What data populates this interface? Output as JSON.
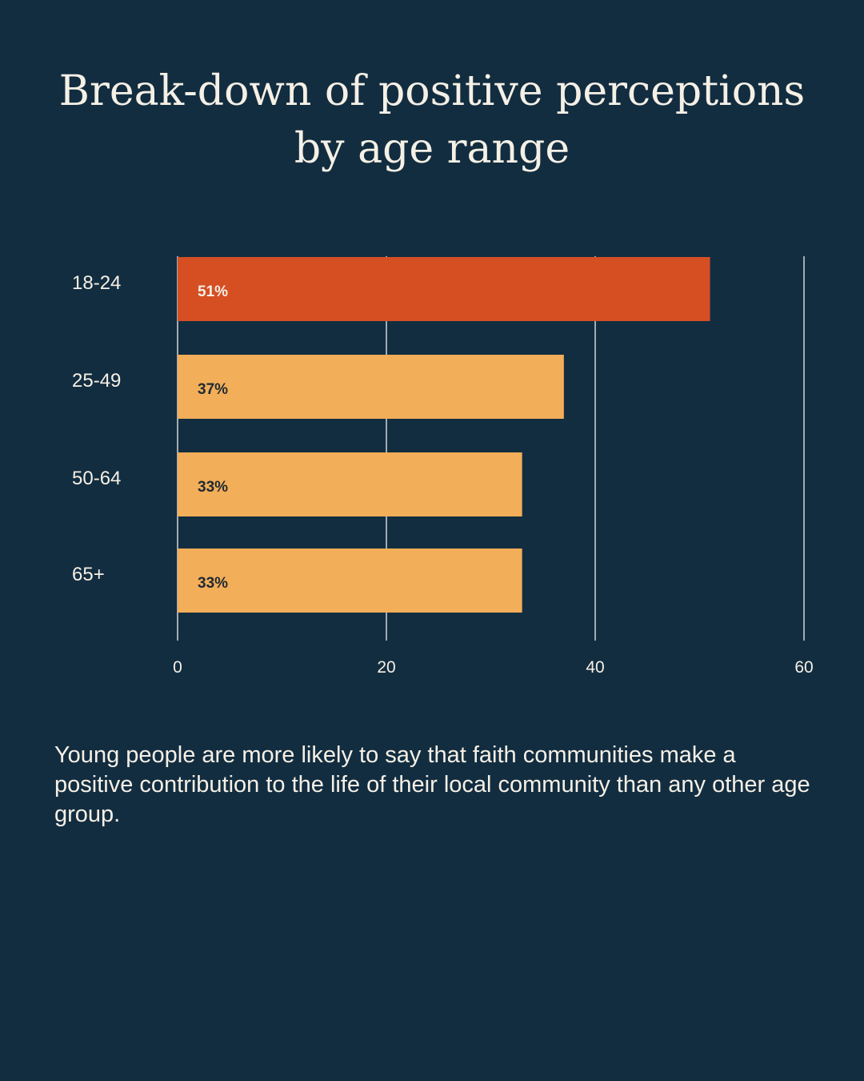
{
  "title": "Break-down of positive perceptions by age range",
  "caption": "Young people are more likely to say that faith communities make a positive contribution to the life of their local community than any other age group.",
  "colors": {
    "background": "#132d40",
    "highlight_bar": "#d54f23",
    "bar": "#f2ae58",
    "text": "#f5f0e6",
    "bar_label_dark": "#1f2a33",
    "gridline": "#ffffff"
  },
  "chart_data": {
    "type": "bar",
    "orientation": "horizontal",
    "categories": [
      "18-24",
      "25-49",
      "50-64",
      "65+"
    ],
    "values": [
      51,
      37,
      33,
      33
    ],
    "data_labels": [
      "51%",
      "37%",
      "33%",
      "33%"
    ],
    "highlighted_category": "18-24",
    "xlim": [
      0,
      60
    ],
    "xticks": [
      0,
      20,
      40,
      60
    ],
    "xtick_labels": [
      "0",
      "20",
      "40",
      "60"
    ],
    "xlabel": "",
    "ylabel": "",
    "grid": true,
    "legend": "none"
  }
}
